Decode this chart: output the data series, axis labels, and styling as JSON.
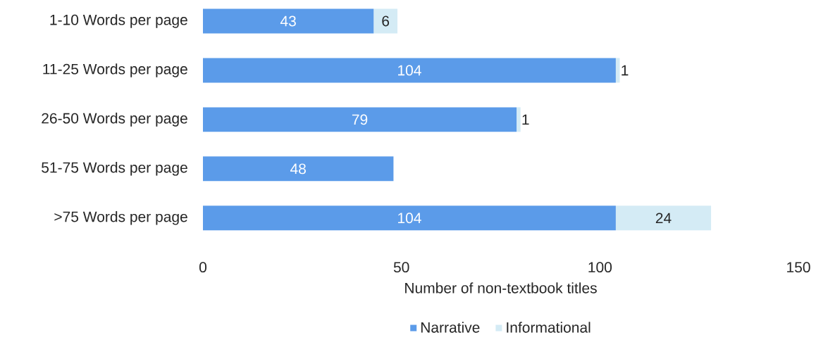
{
  "chart_data": {
    "type": "bar",
    "orientation": "horizontal",
    "stacked": true,
    "categories": [
      "1-10 Words per page",
      "11-25 Words per page",
      "26-50 Words per page",
      "51-75 Words per page",
      ">75 Words per page"
    ],
    "series": [
      {
        "name": "Narrative",
        "color": "#5b9be9",
        "values": [
          43,
          104,
          79,
          48,
          104
        ]
      },
      {
        "name": "Informational",
        "color": "#d4ebf5",
        "values": [
          6,
          1,
          1,
          null,
          24
        ]
      }
    ],
    "xlabel": "Number of non-textbook titles",
    "xlim": [
      0,
      150
    ],
    "xticks": [
      0,
      50,
      100,
      150
    ],
    "data_labels": true,
    "legend": "bottom"
  }
}
